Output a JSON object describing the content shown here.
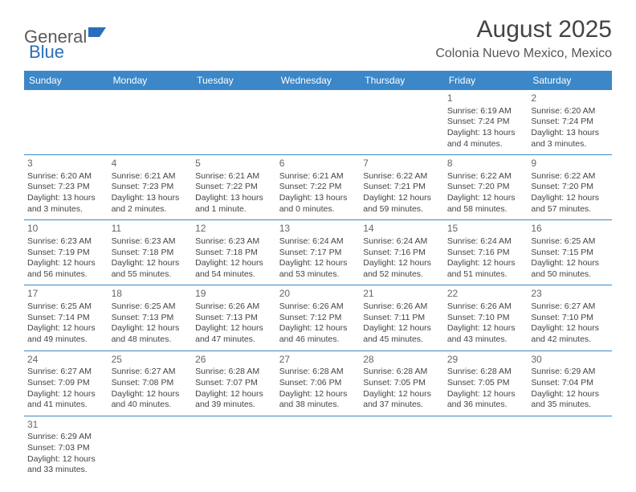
{
  "logo": {
    "general": "General",
    "blue": "Blue"
  },
  "header": {
    "month_title": "August 2025",
    "location": "Colonia Nuevo Mexico, Mexico"
  },
  "colors": {
    "header_bg": "#3b87c8",
    "header_text": "#ffffff",
    "row_border": "#3b87c8",
    "body_text": "#444444",
    "logo_gray": "#5a5a5a",
    "logo_blue": "#2a6ebb"
  },
  "weekdays": [
    "Sunday",
    "Monday",
    "Tuesday",
    "Wednesday",
    "Thursday",
    "Friday",
    "Saturday"
  ],
  "weeks": [
    [
      null,
      null,
      null,
      null,
      null,
      {
        "day": "1",
        "sunrise": "Sunrise: 6:19 AM",
        "sunset": "Sunset: 7:24 PM",
        "daylight": "Daylight: 13 hours and 4 minutes."
      },
      {
        "day": "2",
        "sunrise": "Sunrise: 6:20 AM",
        "sunset": "Sunset: 7:24 PM",
        "daylight": "Daylight: 13 hours and 3 minutes."
      }
    ],
    [
      {
        "day": "3",
        "sunrise": "Sunrise: 6:20 AM",
        "sunset": "Sunset: 7:23 PM",
        "daylight": "Daylight: 13 hours and 3 minutes."
      },
      {
        "day": "4",
        "sunrise": "Sunrise: 6:21 AM",
        "sunset": "Sunset: 7:23 PM",
        "daylight": "Daylight: 13 hours and 2 minutes."
      },
      {
        "day": "5",
        "sunrise": "Sunrise: 6:21 AM",
        "sunset": "Sunset: 7:22 PM",
        "daylight": "Daylight: 13 hours and 1 minute."
      },
      {
        "day": "6",
        "sunrise": "Sunrise: 6:21 AM",
        "sunset": "Sunset: 7:22 PM",
        "daylight": "Daylight: 13 hours and 0 minutes."
      },
      {
        "day": "7",
        "sunrise": "Sunrise: 6:22 AM",
        "sunset": "Sunset: 7:21 PM",
        "daylight": "Daylight: 12 hours and 59 minutes."
      },
      {
        "day": "8",
        "sunrise": "Sunrise: 6:22 AM",
        "sunset": "Sunset: 7:20 PM",
        "daylight": "Daylight: 12 hours and 58 minutes."
      },
      {
        "day": "9",
        "sunrise": "Sunrise: 6:22 AM",
        "sunset": "Sunset: 7:20 PM",
        "daylight": "Daylight: 12 hours and 57 minutes."
      }
    ],
    [
      {
        "day": "10",
        "sunrise": "Sunrise: 6:23 AM",
        "sunset": "Sunset: 7:19 PM",
        "daylight": "Daylight: 12 hours and 56 minutes."
      },
      {
        "day": "11",
        "sunrise": "Sunrise: 6:23 AM",
        "sunset": "Sunset: 7:18 PM",
        "daylight": "Daylight: 12 hours and 55 minutes."
      },
      {
        "day": "12",
        "sunrise": "Sunrise: 6:23 AM",
        "sunset": "Sunset: 7:18 PM",
        "daylight": "Daylight: 12 hours and 54 minutes."
      },
      {
        "day": "13",
        "sunrise": "Sunrise: 6:24 AM",
        "sunset": "Sunset: 7:17 PM",
        "daylight": "Daylight: 12 hours and 53 minutes."
      },
      {
        "day": "14",
        "sunrise": "Sunrise: 6:24 AM",
        "sunset": "Sunset: 7:16 PM",
        "daylight": "Daylight: 12 hours and 52 minutes."
      },
      {
        "day": "15",
        "sunrise": "Sunrise: 6:24 AM",
        "sunset": "Sunset: 7:16 PM",
        "daylight": "Daylight: 12 hours and 51 minutes."
      },
      {
        "day": "16",
        "sunrise": "Sunrise: 6:25 AM",
        "sunset": "Sunset: 7:15 PM",
        "daylight": "Daylight: 12 hours and 50 minutes."
      }
    ],
    [
      {
        "day": "17",
        "sunrise": "Sunrise: 6:25 AM",
        "sunset": "Sunset: 7:14 PM",
        "daylight": "Daylight: 12 hours and 49 minutes."
      },
      {
        "day": "18",
        "sunrise": "Sunrise: 6:25 AM",
        "sunset": "Sunset: 7:13 PM",
        "daylight": "Daylight: 12 hours and 48 minutes."
      },
      {
        "day": "19",
        "sunrise": "Sunrise: 6:26 AM",
        "sunset": "Sunset: 7:13 PM",
        "daylight": "Daylight: 12 hours and 47 minutes."
      },
      {
        "day": "20",
        "sunrise": "Sunrise: 6:26 AM",
        "sunset": "Sunset: 7:12 PM",
        "daylight": "Daylight: 12 hours and 46 minutes."
      },
      {
        "day": "21",
        "sunrise": "Sunrise: 6:26 AM",
        "sunset": "Sunset: 7:11 PM",
        "daylight": "Daylight: 12 hours and 45 minutes."
      },
      {
        "day": "22",
        "sunrise": "Sunrise: 6:26 AM",
        "sunset": "Sunset: 7:10 PM",
        "daylight": "Daylight: 12 hours and 43 minutes."
      },
      {
        "day": "23",
        "sunrise": "Sunrise: 6:27 AM",
        "sunset": "Sunset: 7:10 PM",
        "daylight": "Daylight: 12 hours and 42 minutes."
      }
    ],
    [
      {
        "day": "24",
        "sunrise": "Sunrise: 6:27 AM",
        "sunset": "Sunset: 7:09 PM",
        "daylight": "Daylight: 12 hours and 41 minutes."
      },
      {
        "day": "25",
        "sunrise": "Sunrise: 6:27 AM",
        "sunset": "Sunset: 7:08 PM",
        "daylight": "Daylight: 12 hours and 40 minutes."
      },
      {
        "day": "26",
        "sunrise": "Sunrise: 6:28 AM",
        "sunset": "Sunset: 7:07 PM",
        "daylight": "Daylight: 12 hours and 39 minutes."
      },
      {
        "day": "27",
        "sunrise": "Sunrise: 6:28 AM",
        "sunset": "Sunset: 7:06 PM",
        "daylight": "Daylight: 12 hours and 38 minutes."
      },
      {
        "day": "28",
        "sunrise": "Sunrise: 6:28 AM",
        "sunset": "Sunset: 7:05 PM",
        "daylight": "Daylight: 12 hours and 37 minutes."
      },
      {
        "day": "29",
        "sunrise": "Sunrise: 6:28 AM",
        "sunset": "Sunset: 7:05 PM",
        "daylight": "Daylight: 12 hours and 36 minutes."
      },
      {
        "day": "30",
        "sunrise": "Sunrise: 6:29 AM",
        "sunset": "Sunset: 7:04 PM",
        "daylight": "Daylight: 12 hours and 35 minutes."
      }
    ],
    [
      {
        "day": "31",
        "sunrise": "Sunrise: 6:29 AM",
        "sunset": "Sunset: 7:03 PM",
        "daylight": "Daylight: 12 hours and 33 minutes."
      },
      null,
      null,
      null,
      null,
      null,
      null
    ]
  ]
}
